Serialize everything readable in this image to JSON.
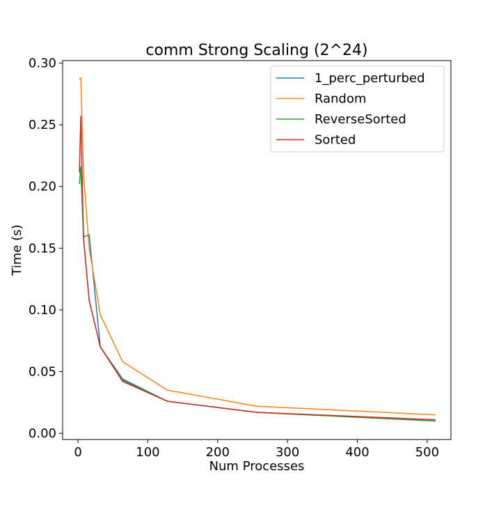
{
  "chart_data": {
    "type": "line",
    "title": "comm Strong Scaling (2^24)",
    "xlabel": "Num Processes",
    "ylabel": "Time (s)",
    "xlim": [
      -22,
      534
    ],
    "ylim": [
      -0.005,
      0.302
    ],
    "xticks": [
      0,
      100,
      200,
      300,
      400,
      500
    ],
    "xtick_labels": [
      "0",
      "100",
      "200",
      "300",
      "400",
      "500"
    ],
    "yticks": [
      0.0,
      0.05,
      0.1,
      0.15,
      0.2,
      0.25,
      0.3
    ],
    "ytick_labels": [
      "0.00",
      "0.05",
      "0.10",
      "0.15",
      "0.20",
      "0.25",
      "0.30"
    ],
    "grid": false,
    "legend_position": "top-right",
    "x": [
      2,
      4,
      8,
      16,
      32,
      64,
      128,
      256,
      512
    ],
    "series": [
      {
        "name": "1_perc_perturbed",
        "color": "#1f77b4",
        "values": [
          0.211,
          0.215,
          0.159,
          0.161,
          0.07,
          0.044,
          0.026,
          0.017,
          0.01
        ]
      },
      {
        "name": "Random",
        "color": "#ff7f0e",
        "values": [
          0.287,
          0.288,
          0.21,
          0.15,
          0.096,
          0.058,
          0.035,
          0.022,
          0.015
        ]
      },
      {
        "name": "ReverseSorted",
        "color": "#2ca02c",
        "values": [
          0.202,
          0.216,
          0.157,
          0.108,
          0.07,
          0.043,
          0.026,
          0.017,
          0.01
        ]
      },
      {
        "name": "Sorted",
        "color": "#d62728",
        "values": [
          0.212,
          0.257,
          0.158,
          0.108,
          0.07,
          0.042,
          0.026,
          0.017,
          0.011
        ]
      }
    ]
  }
}
